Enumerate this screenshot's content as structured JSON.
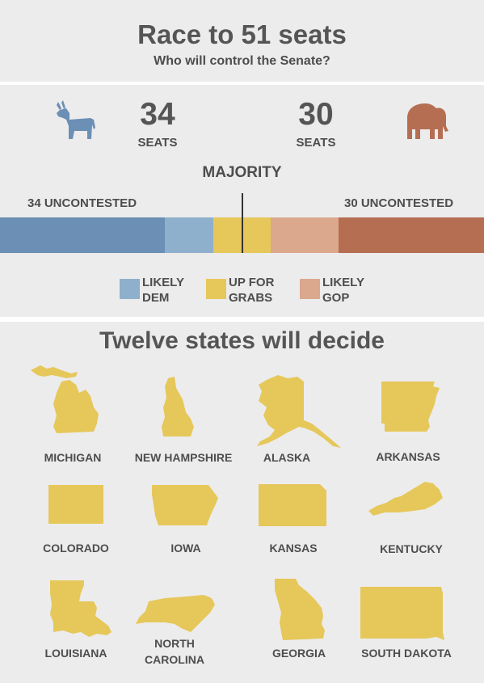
{
  "header": {
    "title": "Race to 51 seats",
    "subtitle": "Who will control the Senate?"
  },
  "colors": {
    "dem": "#6b8fb5",
    "likely_dem": "#8fb0cc",
    "up_for_grabs": "#e6c75a",
    "likely_gop": "#dba88e",
    "gop": "#b56e52",
    "state_fill": "#e6c75a"
  },
  "icons": {
    "dem": "donkey-icon",
    "gop": "elephant-icon"
  },
  "dem": {
    "count": "34",
    "label": "SEATS"
  },
  "gop": {
    "count": "30",
    "label": "SEATS"
  },
  "majority_label": "MAJORITY",
  "uncontested": {
    "dem": "34 UNCONTESTED",
    "gop": "30 UNCONTESTED"
  },
  "chart_data": {
    "type": "bar",
    "orientation": "stacked-horizontal",
    "total": 100,
    "majority": 51,
    "segments": [
      {
        "name": "Dem uncontested",
        "value": 34,
        "color": "#6b8fb5"
      },
      {
        "name": "Likely Dem",
        "value": 10,
        "color": "#8fb0cc"
      },
      {
        "name": "Up for grabs",
        "value": 12,
        "color": "#e6c75a"
      },
      {
        "name": "Likely GOP",
        "value": 14,
        "color": "#dba88e"
      },
      {
        "name": "GOP uncontested",
        "value": 30,
        "color": "#b56e52"
      }
    ],
    "legend": [
      {
        "line1": "LIKELY",
        "line2": "DEM",
        "color": "#8fb0cc"
      },
      {
        "line1": "UP FOR",
        "line2": "GRABS",
        "color": "#e6c75a"
      },
      {
        "line1": "LIKELY",
        "line2": "GOP",
        "color": "#dba88e"
      }
    ]
  },
  "states_title": "Twelve states will decide",
  "states": [
    {
      "name": "MICHIGAN",
      "line2": ""
    },
    {
      "name": "NEW HAMPSHIRE",
      "line2": ""
    },
    {
      "name": "ALASKA",
      "line2": ""
    },
    {
      "name": "ARKANSAS",
      "line2": ""
    },
    {
      "name": "COLORADO",
      "line2": ""
    },
    {
      "name": "IOWA",
      "line2": ""
    },
    {
      "name": "KANSAS",
      "line2": ""
    },
    {
      "name": "KENTUCKY",
      "line2": ""
    },
    {
      "name": "LOUISIANA",
      "line2": ""
    },
    {
      "name": "NORTH",
      "line2": "CAROLINA"
    },
    {
      "name": "GEORGIA",
      "line2": ""
    },
    {
      "name": "SOUTH DAKOTA",
      "line2": ""
    }
  ]
}
